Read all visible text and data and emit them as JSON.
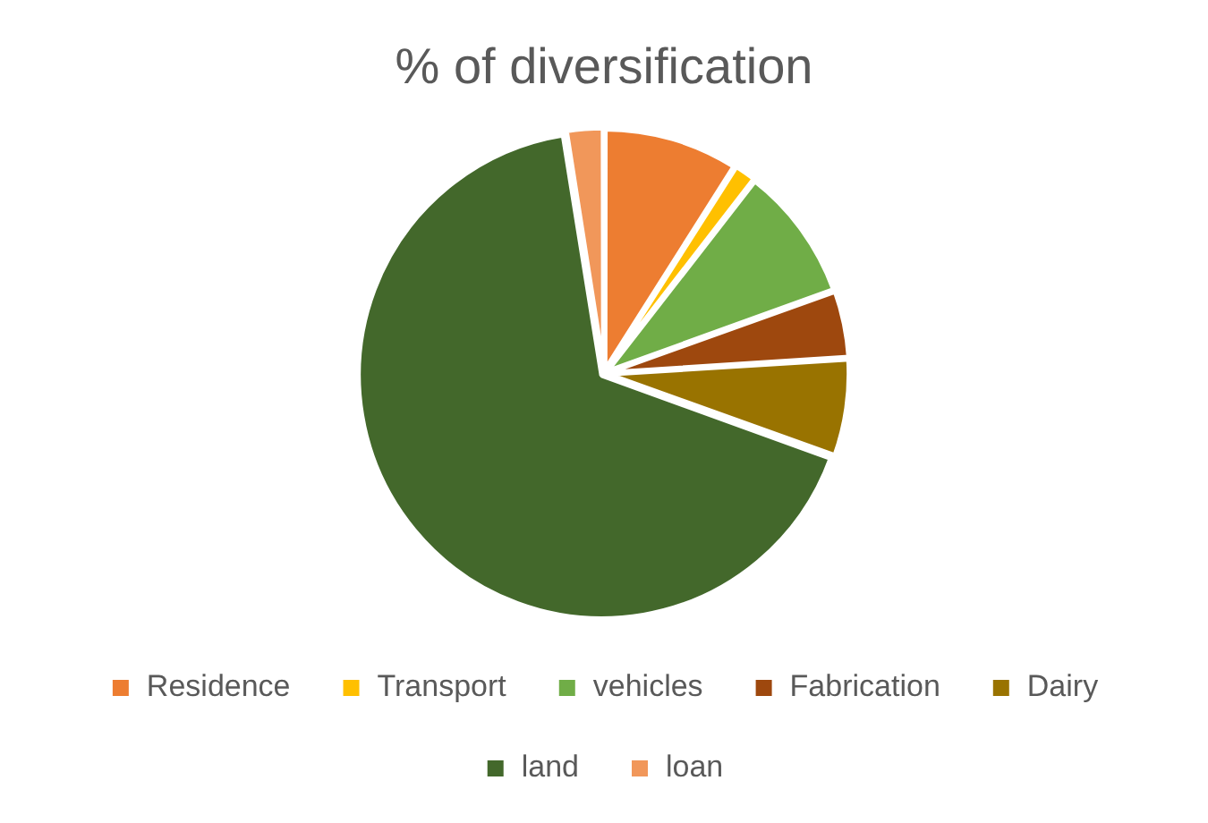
{
  "chart_data": {
    "type": "pie",
    "title": "% of diversification",
    "categories": [
      "Residence",
      "Transport",
      "vehicles",
      "Fabrication",
      "Dairy",
      "land",
      "loan"
    ],
    "values": [
      9,
      1.5,
      9,
      4.5,
      6.5,
      67,
      2.5
    ],
    "colors": [
      "#ed7d31",
      "#ffc000",
      "#70ad47",
      "#9e480e",
      "#997300",
      "#43682b",
      "#f1975a"
    ],
    "legend": "bottom"
  }
}
